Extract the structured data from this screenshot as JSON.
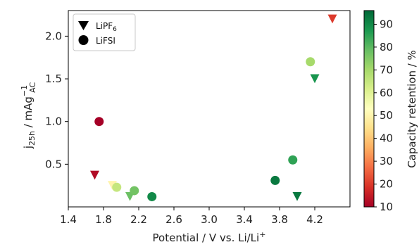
{
  "chart_data": {
    "type": "scatter",
    "xlabel": "Potential / V vs. Li/Li",
    "xlabel_sup": "+",
    "ylabel_main": "j",
    "ylabel_sub": "25h",
    "ylabel_unit": " / mAg",
    "ylabel_unit_sup": "−1",
    "ylabel_unit_sub": "AC",
    "xlim": [
      1.4,
      4.6
    ],
    "ylim": [
      0,
      2.3
    ],
    "xticks": [
      1.4,
      1.8,
      2.2,
      2.6,
      3.0,
      3.4,
      3.8,
      4.2
    ],
    "xtick_labels": [
      "1.4",
      "1.8",
      "2.2",
      "2.6",
      "3.0",
      "3.4",
      "3.8",
      "4.2"
    ],
    "yticks": [
      0.5,
      1.0,
      1.5,
      2.0
    ],
    "ytick_labels": [
      "0.5",
      "1.0",
      "1.5",
      "2.0"
    ],
    "grid": false,
    "legend_position": "top-left",
    "colorbar": {
      "label": "Capacity retention / %",
      "min": 10,
      "max": 96,
      "ticks": [
        10,
        20,
        30,
        40,
        50,
        60,
        70,
        80,
        90
      ],
      "tick_labels": [
        "10",
        "20",
        "30",
        "40",
        "50",
        "60",
        "70",
        "80",
        "90"
      ],
      "colormap": "RdYlGn"
    },
    "series": [
      {
        "name": "LiPF",
        "name_sub": "6",
        "marker": "triangle-down",
        "points": [
          {
            "x": 1.7,
            "y": 0.37,
            "c": 12
          },
          {
            "x": 1.9,
            "y": 0.25,
            "c": 50
          },
          {
            "x": 2.1,
            "y": 0.12,
            "c": 78
          },
          {
            "x": 4.0,
            "y": 0.12,
            "c": 93
          },
          {
            "x": 4.2,
            "y": 1.5,
            "c": 88
          },
          {
            "x": 4.4,
            "y": 2.2,
            "c": 20
          }
        ]
      },
      {
        "name": "LiFSI",
        "marker": "circle",
        "points": [
          {
            "x": 1.75,
            "y": 1.0,
            "c": 10
          },
          {
            "x": 1.95,
            "y": 0.23,
            "c": 65
          },
          {
            "x": 2.15,
            "y": 0.19,
            "c": 77
          },
          {
            "x": 2.35,
            "y": 0.12,
            "c": 90
          },
          {
            "x": 3.75,
            "y": 0.31,
            "c": 93
          },
          {
            "x": 3.95,
            "y": 0.55,
            "c": 85
          },
          {
            "x": 4.15,
            "y": 1.7,
            "c": 70
          }
        ]
      }
    ]
  }
}
